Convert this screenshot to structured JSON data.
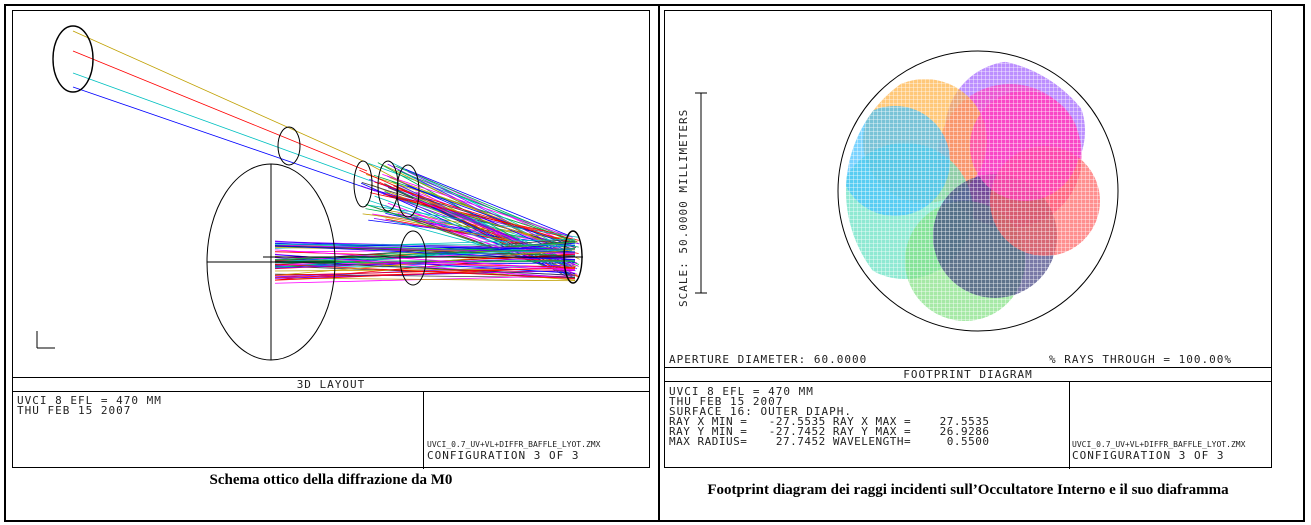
{
  "left": {
    "title": "3D LAYOUT",
    "info_line1": "UVCI 8 EFL = 470 MM",
    "info_line2": "THU FEB 15 2007",
    "file": "UVCI_0.7_UV+VL+DIFFR_BAFFLE_LYOT.ZMX",
    "config": "CONFIGURATION 3 OF 3",
    "caption": "Schema ottico della diffrazione da M0"
  },
  "right": {
    "title": "FOOTPRINT DIAGRAM",
    "scale_label": "SCALE: 50.0000 MILLIMETERS",
    "aperture": "APERTURE DIAMETER: 60.0000",
    "rays_through": "% RAYS THROUGH = 100.00%",
    "info_lines": [
      "UVCI 8 EFL = 470 MM",
      "THU FEB 15 2007",
      "SURFACE 16: OUTER DIAPH.",
      "RAY X MIN =   -27.5535 RAY X MAX =    27.5535",
      "RAY Y MIN =   -27.7452 RAY Y MAX =    26.9286",
      "MAX RADIUS=    27.7452 WAVELENGTH=     0.5500"
    ],
    "file": "UVCI_0.7_UV+VL+DIFFR_BAFFLE_LYOT.ZMX",
    "config": "CONFIGURATION 3 OF 3",
    "caption": "Footprint diagram dei raggi incidenti sull’Occultatore Interno e il suo diaframma"
  },
  "colors": {
    "ray_colors": [
      "#0000ff",
      "#00b050",
      "#ff0000",
      "#ff00ff",
      "#00c0c0",
      "#c0a000",
      "#8000ff",
      "#404040"
    ],
    "footprint_colors": [
      "#ff40c0",
      "#a060ff",
      "#60e0c0",
      "#ffb040",
      "#40c0ff",
      "#404080",
      "#80e080",
      "#ff6060"
    ]
  }
}
